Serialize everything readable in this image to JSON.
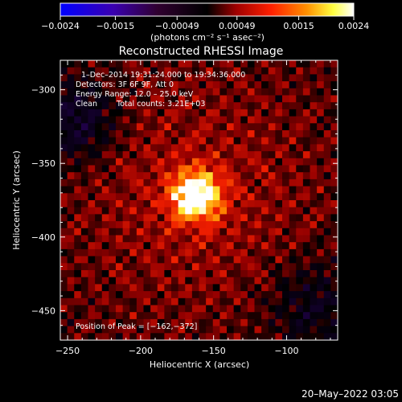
{
  "chart_data": {
    "type": "heatmap",
    "title": "Reconstructed RHESSI Image",
    "xlabel": "Heliocentric X (arcsec)",
    "ylabel": "Heliocentric Y (arcsec)",
    "xlim": [
      -255,
      -65
    ],
    "ylim": [
      -470,
      -280
    ],
    "x_ticks": [
      -250,
      -200,
      -150,
      -100
    ],
    "y_ticks": [
      -300,
      -350,
      -400,
      -450
    ],
    "x_tick_labels": [
      "−250",
      "−200",
      "−150",
      "−100"
    ],
    "y_tick_labels": [
      "−300",
      "−350",
      "−400",
      "−450"
    ],
    "colorbar": {
      "range": [
        -0.0024,
        0.0024
      ],
      "ticks": [
        -0.0024,
        -0.0015,
        -0.00049,
        0.00049,
        0.0015,
        0.0024
      ],
      "tick_labels": [
        "−0.0024",
        "−0.0015",
        "−0.00049",
        "0.00049",
        "0.0015",
        "0.0024"
      ],
      "units": "(photons cm⁻² s⁻¹ asec⁻²)"
    },
    "annotations": {
      "time": "1–Dec–2014 19:31:24.000 to 19:34:36.000",
      "detectors": "Detectors: 3F 6F 9F, Att 0",
      "energy": "Energy Range: 12.0 – 25.0 keV",
      "clean": "Clean",
      "counts": "Total counts: 3.21E+03",
      "peak": "Position of Peak = [−162,−372]"
    },
    "peak": {
      "x": -162,
      "y": -372
    },
    "colormap": [
      "#0000ff",
      "#4b0082",
      "#000000",
      "#cc0000",
      "#ff8000",
      "#ffff80",
      "#ffffff"
    ]
  },
  "footer": {
    "date": "20–May–2022 03:05"
  }
}
